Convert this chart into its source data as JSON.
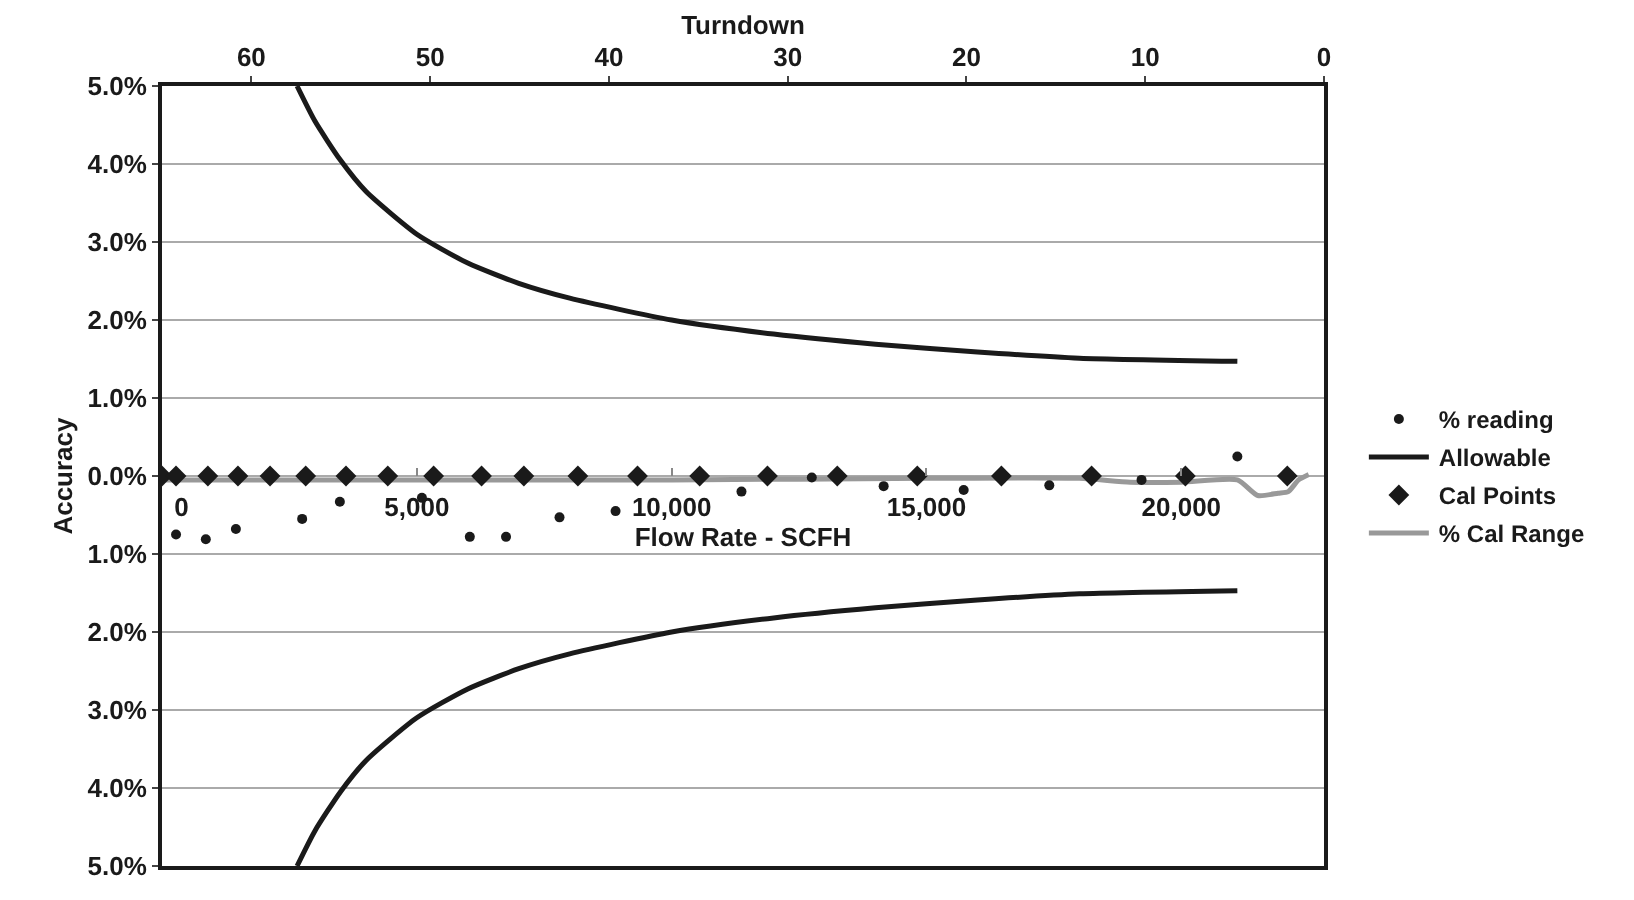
{
  "chart_data": {
    "type": "scatter",
    "xlabel": "Flow Rate - SCFH",
    "x2label": "Turndown",
    "ylabel": "Accuracy",
    "xlim": [
      0,
      22800
    ],
    "xticks": [
      0,
      {
        "value": 5000,
        "label": "5,000"
      },
      {
        "value": 10000,
        "label": "10,000"
      },
      {
        "value": 15000,
        "label": "15,000"
      },
      {
        "value": 20000,
        "label": "20,000"
      }
    ],
    "x2lim": [
      65,
      0
    ],
    "x2ticks": [
      60,
      50,
      40,
      30,
      20,
      10,
      0
    ],
    "ylim": [
      -5,
      5
    ],
    "yticks": [
      {
        "value": 5,
        "label": "5.0%"
      },
      {
        "value": 4,
        "label": "4.0%"
      },
      {
        "value": 3,
        "label": "3.0%"
      },
      {
        "value": 2,
        "label": "2.0%"
      },
      {
        "value": 1,
        "label": "1.0%"
      },
      {
        "value": 0,
        "label": "0.0%"
      },
      {
        "value": -1,
        "label": "1.0%"
      },
      {
        "value": -2,
        "label": "2.0%"
      },
      {
        "value": -3,
        "label": "3.0%"
      },
      {
        "value": -4,
        "label": "4.0%"
      },
      {
        "value": -5,
        "label": "5.0%"
      }
    ],
    "grid": "y",
    "legend": "right",
    "series": [
      {
        "name": "% reading",
        "marker": "circle",
        "color": "#1a1a1a",
        "x": [
          275,
          860,
          1450,
          2750,
          3490,
          5100,
          6040,
          6750,
          7800,
          8900,
          11370,
          12750,
          14160,
          15730,
          17410,
          19220,
          21100
        ],
        "values": [
          -0.75,
          -0.81,
          -0.68,
          -0.55,
          -0.33,
          -0.28,
          -0.78,
          -0.78,
          -0.53,
          -0.45,
          -0.2,
          -0.02,
          -0.13,
          -0.18,
          -0.12,
          -0.05,
          0.25
        ]
      },
      {
        "name": "Allowable",
        "type": "line",
        "line_style": "solid",
        "color": "#1a1a1a",
        "x": [
          2650,
          3000,
          3500,
          4000,
          5000,
          6000,
          7000,
          8000,
          10000,
          12000,
          14000,
          16000,
          18000,
          21100
        ],
        "values": [
          5.0,
          4.55,
          4.05,
          3.65,
          3.1,
          2.73,
          2.47,
          2.28,
          2.0,
          1.82,
          1.69,
          1.59,
          1.51,
          1.47
        ]
      },
      {
        "name": "Cal Points",
        "marker": "diamond",
        "color": "#1a1a1a",
        "x": [
          0,
          275,
          900,
          1490,
          2120,
          2820,
          3610,
          4430,
          5330,
          6270,
          7100,
          8160,
          9330,
          10550,
          11880,
          13250,
          14820,
          16470,
          18240,
          20080,
          22080
        ],
        "values": [
          0,
          0,
          0,
          0,
          0,
          0,
          0,
          0,
          0,
          0,
          0,
          0,
          0,
          0,
          0,
          0,
          0,
          0,
          0,
          0,
          0
        ]
      },
      {
        "name": "% Cal Range",
        "type": "line",
        "line_style": "solid",
        "color": "#999999",
        "x": [
          0,
          5000,
          10000,
          15000,
          18000,
          19000,
          20000,
          21100,
          21500,
          21900,
          22100,
          22300,
          22500
        ],
        "values": [
          -0.05,
          -0.05,
          -0.05,
          -0.03,
          -0.03,
          -0.08,
          -0.08,
          -0.05,
          -0.25,
          -0.22,
          -0.2,
          -0.05,
          0.02
        ]
      },
      {
        "type": "line",
        "line_style": "solid",
        "color": "#1a1a1a",
        "x": [
          2650,
          3000,
          3500,
          4000,
          5000,
          6000,
          7000,
          8000,
          10000,
          12000,
          14000,
          16000,
          18000,
          21100
        ],
        "values": [
          -5.0,
          -4.55,
          -4.05,
          -3.65,
          -3.1,
          -2.73,
          -2.47,
          -2.28,
          -2.0,
          -1.82,
          -1.69,
          -1.59,
          -1.51,
          -1.47
        ]
      }
    ]
  }
}
